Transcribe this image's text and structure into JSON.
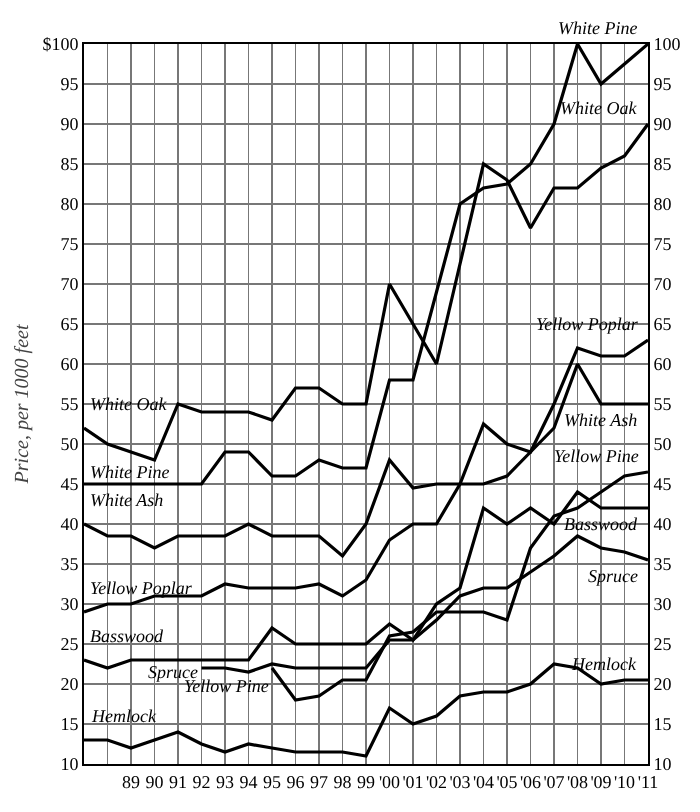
{
  "chart_data": {
    "type": "line",
    "ylabel": "Price, per 1000 feet",
    "x": [
      1887,
      1888,
      1889,
      1890,
      1891,
      1892,
      1893,
      1894,
      1895,
      1896,
      1897,
      1898,
      1899,
      1900,
      1901,
      1902,
      1903,
      1904,
      1905,
      1906,
      1907,
      1908,
      1909,
      1910,
      1911
    ],
    "series": [
      {
        "name": "White Oak",
        "color": "#000000",
        "values": [
          52,
          50,
          49,
          48,
          55,
          54,
          54,
          54,
          53,
          57,
          57,
          55,
          55,
          70,
          65,
          60,
          72.5,
          85,
          83,
          77,
          82,
          82,
          84.5,
          86,
          90
        ]
      },
      {
        "name": "White Pine",
        "color": "#000000",
        "values": [
          45,
          45,
          45,
          45,
          45,
          45,
          49,
          49,
          46,
          46,
          48,
          47,
          47,
          58,
          58,
          69,
          80,
          82,
          82.5,
          85,
          90,
          100,
          95,
          97.5,
          100
        ]
      },
      {
        "name": "White Ash",
        "color": "#000000",
        "values": [
          40,
          38.5,
          38.5,
          37,
          38.5,
          38.5,
          38.5,
          40,
          38.5,
          38.5,
          38.5,
          36,
          40,
          48,
          44.5,
          45,
          45,
          45,
          46,
          49,
          52,
          60,
          55,
          55,
          55
        ]
      },
      {
        "name": "Yellow Poplar",
        "color": "#000000",
        "values": [
          29,
          30,
          30,
          31,
          31,
          31,
          32.5,
          32,
          32,
          32,
          32.5,
          31,
          33,
          38,
          40,
          40,
          45,
          52.5,
          50,
          49,
          55,
          62,
          61,
          61,
          63
        ]
      },
      {
        "name": "Basswood",
        "color": "#000000",
        "values": [
          23,
          22,
          23,
          23,
          23,
          23,
          23,
          23,
          27,
          25,
          25,
          25,
          25,
          27.5,
          25.5,
          30,
          32,
          42,
          40,
          42,
          40,
          44,
          42,
          42,
          42
        ]
      },
      {
        "name": "Spruce",
        "color": "#000000",
        "values": [
          null,
          null,
          null,
          null,
          null,
          22,
          22,
          21.5,
          22.5,
          22,
          22,
          22,
          22,
          25.5,
          25.5,
          28,
          31,
          32,
          32,
          34,
          36,
          38.5,
          37,
          36.5,
          35.5
        ]
      },
      {
        "name": "Yellow Pine",
        "color": "#000000",
        "values": [
          null,
          null,
          null,
          null,
          null,
          null,
          null,
          null,
          22,
          18,
          18.5,
          20.5,
          20.5,
          26,
          26.5,
          29,
          29,
          29,
          28,
          37,
          41,
          42,
          44,
          46,
          46.5
        ]
      },
      {
        "name": "Hemlock",
        "color": "#000000",
        "values": [
          13,
          13,
          12,
          13,
          14,
          12.5,
          11.5,
          12.5,
          12,
          11.5,
          11.5,
          11.5,
          11,
          17,
          15,
          16,
          18.5,
          19,
          19,
          20,
          22.5,
          22,
          20,
          20.5,
          20.5
        ]
      }
    ],
    "xlim": [
      1887,
      1911
    ],
    "xticks": [
      {
        "value": 1887,
        "label": null
      },
      {
        "value": 1888,
        "label": null
      },
      {
        "value": 1889,
        "label": "89"
      },
      {
        "value": 1890,
        "label": "90"
      },
      {
        "value": 1891,
        "label": "91"
      },
      {
        "value": 1892,
        "label": "92"
      },
      {
        "value": 1893,
        "label": "93"
      },
      {
        "value": 1894,
        "label": "94"
      },
      {
        "value": 1895,
        "label": "95"
      },
      {
        "value": 1896,
        "label": "96"
      },
      {
        "value": 1897,
        "label": "97"
      },
      {
        "value": 1898,
        "label": "98"
      },
      {
        "value": 1899,
        "label": "99"
      },
      {
        "value": 1900,
        "label": "'00"
      },
      {
        "value": 1901,
        "label": "'01"
      },
      {
        "value": 1902,
        "label": "'02"
      },
      {
        "value": 1903,
        "label": "'03"
      },
      {
        "value": 1904,
        "label": "'04"
      },
      {
        "value": 1905,
        "label": "'05"
      },
      {
        "value": 1906,
        "label": "'06"
      },
      {
        "value": 1907,
        "label": "'07"
      },
      {
        "value": 1908,
        "label": "'08"
      },
      {
        "value": 1909,
        "label": "'09"
      },
      {
        "value": 1910,
        "label": "'10"
      },
      {
        "value": 1911,
        "label": "'11"
      }
    ],
    "ylim": [
      10,
      100
    ],
    "yticks": [
      10,
      15,
      20,
      25,
      30,
      35,
      40,
      45,
      50,
      55,
      60,
      65,
      70,
      75,
      80,
      85,
      90,
      95,
      {
        "value": 100,
        "label": "$100"
      }
    ],
    "y2lim": [
      10,
      100
    ],
    "y2ticks": [
      10,
      15,
      20,
      25,
      30,
      35,
      40,
      45,
      50,
      55,
      60,
      65,
      70,
      75,
      80,
      85,
      90,
      95,
      100
    ],
    "grid": true,
    "legend": false,
    "marker": "none",
    "line_style": "solid"
  }
}
